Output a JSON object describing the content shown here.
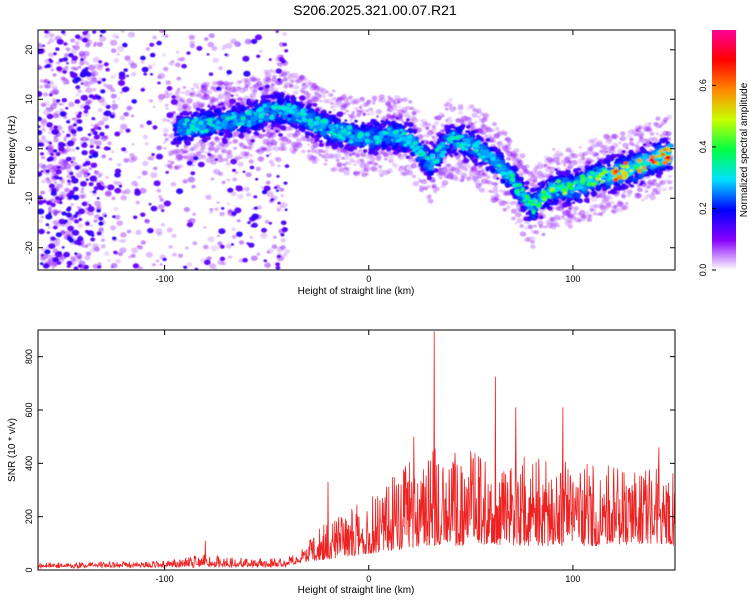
{
  "title": "S206.2025.321.00.07.R21",
  "chart_data": [
    {
      "type": "heatmap",
      "name": "spectrogram",
      "xlabel": "Height of straight line (km)",
      "ylabel": "Frequency (Hz)",
      "xlim": [
        -162,
        150
      ],
      "ylim": [
        -24.5,
        24
      ],
      "x_ticks": [
        -100,
        0,
        100
      ],
      "y_ticks": [
        -20,
        -10,
        0,
        10,
        20
      ],
      "colorbar": {
        "label": "Normalized spectral amplitude",
        "range": [
          0.0,
          0.78
        ],
        "ticks": [
          0.0,
          0.2,
          0.4,
          0.6
        ],
        "stops": [
          "#ffffff",
          "#8800ff",
          "#0000ff",
          "#00e0ff",
          "#00ff44",
          "#c8ff00",
          "#ff8800",
          "#ff0000",
          "#ff0099"
        ]
      },
      "ridge": {
        "x": [
          -95,
          -80,
          -60,
          -45,
          -35,
          -20,
          -10,
          0,
          10,
          20,
          30,
          40,
          50,
          60,
          70,
          80,
          90,
          100,
          110,
          120,
          130,
          140,
          148
        ],
        "y": [
          4,
          5,
          6,
          8,
          7,
          4,
          3,
          2,
          3,
          2,
          -3,
          2,
          1,
          -2,
          -6,
          -12,
          -8,
          -8,
          -6,
          -5,
          -4,
          -2,
          -1
        ]
      }
    },
    {
      "type": "line",
      "name": "snr",
      "xlabel": "Height of straight line (km)",
      "ylabel": "SNR (10 * v/v)",
      "xlim": [
        -162,
        150
      ],
      "ylim": [
        0,
        900
      ],
      "x_ticks": [
        -100,
        0,
        100
      ],
      "y_ticks": [
        0,
        200,
        400,
        600,
        800
      ],
      "color": "#ee2222",
      "envelope": {
        "x": [
          -162,
          -100,
          -80,
          -60,
          -40,
          -30,
          -20,
          -10,
          0,
          10,
          20,
          25,
          28,
          32,
          40,
          60,
          80,
          100,
          120,
          140,
          150
        ],
        "base": [
          12,
          15,
          20,
          15,
          18,
          30,
          40,
          50,
          60,
          70,
          80,
          90,
          90,
          90,
          90,
          95,
          90,
          90,
          90,
          100,
          90
        ],
        "amp": [
          15,
          20,
          40,
          30,
          25,
          80,
          150,
          180,
          220,
          280,
          330,
          380,
          400,
          380,
          350,
          360,
          330,
          320,
          300,
          280,
          300
        ]
      },
      "peaks": [
        {
          "x": -80,
          "y": 110
        },
        {
          "x": -20,
          "y": 330
        },
        {
          "x": 22,
          "y": 500
        },
        {
          "x": 32,
          "y": 895
        },
        {
          "x": 62,
          "y": 725
        },
        {
          "x": 72,
          "y": 610
        },
        {
          "x": 95,
          "y": 610
        },
        {
          "x": 142,
          "y": 460
        }
      ]
    }
  ]
}
